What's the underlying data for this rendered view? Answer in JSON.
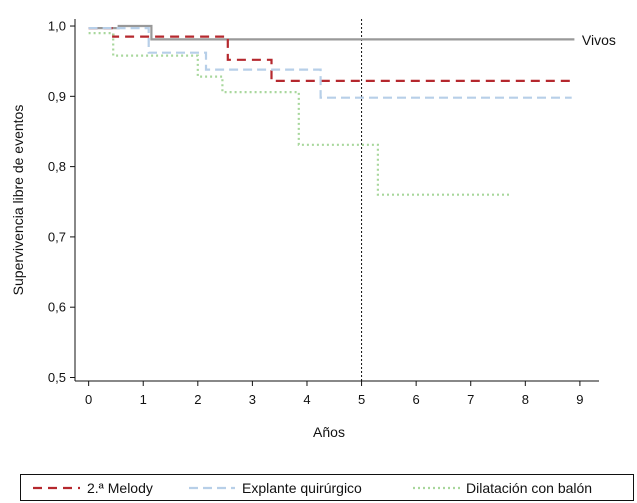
{
  "chart_data": {
    "type": "line",
    "step": true,
    "xlabel": "Años",
    "ylabel": "Supervivencia libre de eventos",
    "xlim": [
      -0.25,
      9.35
    ],
    "ylim": [
      0.495,
      1.01
    ],
    "xticks": [
      "0",
      "1",
      "2",
      "3",
      "4",
      "5",
      "6",
      "7",
      "8",
      "9"
    ],
    "yticks": [
      "0,5",
      "0,6",
      "0,7",
      "0,8",
      "0,9",
      "1,0"
    ],
    "ytick_values": [
      0.5,
      0.6,
      0.7,
      0.8,
      0.9,
      1.0
    ],
    "grid": false,
    "reference_line_x": 5,
    "annotation": {
      "text": "Vivos",
      "x": 9.0,
      "y": 0.98
    },
    "legend_position": "bottom",
    "series": [
      {
        "name": "2.ª Melody",
        "color": "#b5282e",
        "dash": "9,6",
        "points": [
          [
            0,
            0.997
          ],
          [
            0.45,
            0.997
          ],
          [
            0.45,
            0.985
          ],
          [
            2.55,
            0.985
          ],
          [
            2.55,
            0.952
          ],
          [
            3.35,
            0.952
          ],
          [
            3.35,
            0.922
          ],
          [
            8.85,
            0.922
          ]
        ]
      },
      {
        "name": "Explante quirúrgico",
        "color": "#b7cfe8",
        "dash": "9,5",
        "points": [
          [
            0,
            0.997
          ],
          [
            1.1,
            0.997
          ],
          [
            1.1,
            0.962
          ],
          [
            2.15,
            0.962
          ],
          [
            2.15,
            0.938
          ],
          [
            4.25,
            0.938
          ],
          [
            4.25,
            0.898
          ],
          [
            8.85,
            0.898
          ]
        ]
      },
      {
        "name": "Dilatación con balón",
        "color": "#a8d79c",
        "dash": "2,3",
        "points": [
          [
            0,
            0.99
          ],
          [
            0.45,
            0.99
          ],
          [
            0.45,
            0.958
          ],
          [
            2.0,
            0.958
          ],
          [
            2.0,
            0.928
          ],
          [
            2.45,
            0.928
          ],
          [
            2.45,
            0.906
          ],
          [
            3.85,
            0.906
          ],
          [
            3.85,
            0.831
          ],
          [
            5.3,
            0.831
          ],
          [
            5.3,
            0.76
          ],
          [
            7.75,
            0.76
          ]
        ]
      },
      {
        "name": "Vivos",
        "color": "#999999",
        "dash": "",
        "points": [
          [
            0,
            0.997
          ],
          [
            0.55,
            0.997
          ],
          [
            0.55,
            1.0
          ],
          [
            1.15,
            1.0
          ],
          [
            1.15,
            0.981
          ],
          [
            8.9,
            0.981
          ]
        ]
      }
    ]
  }
}
